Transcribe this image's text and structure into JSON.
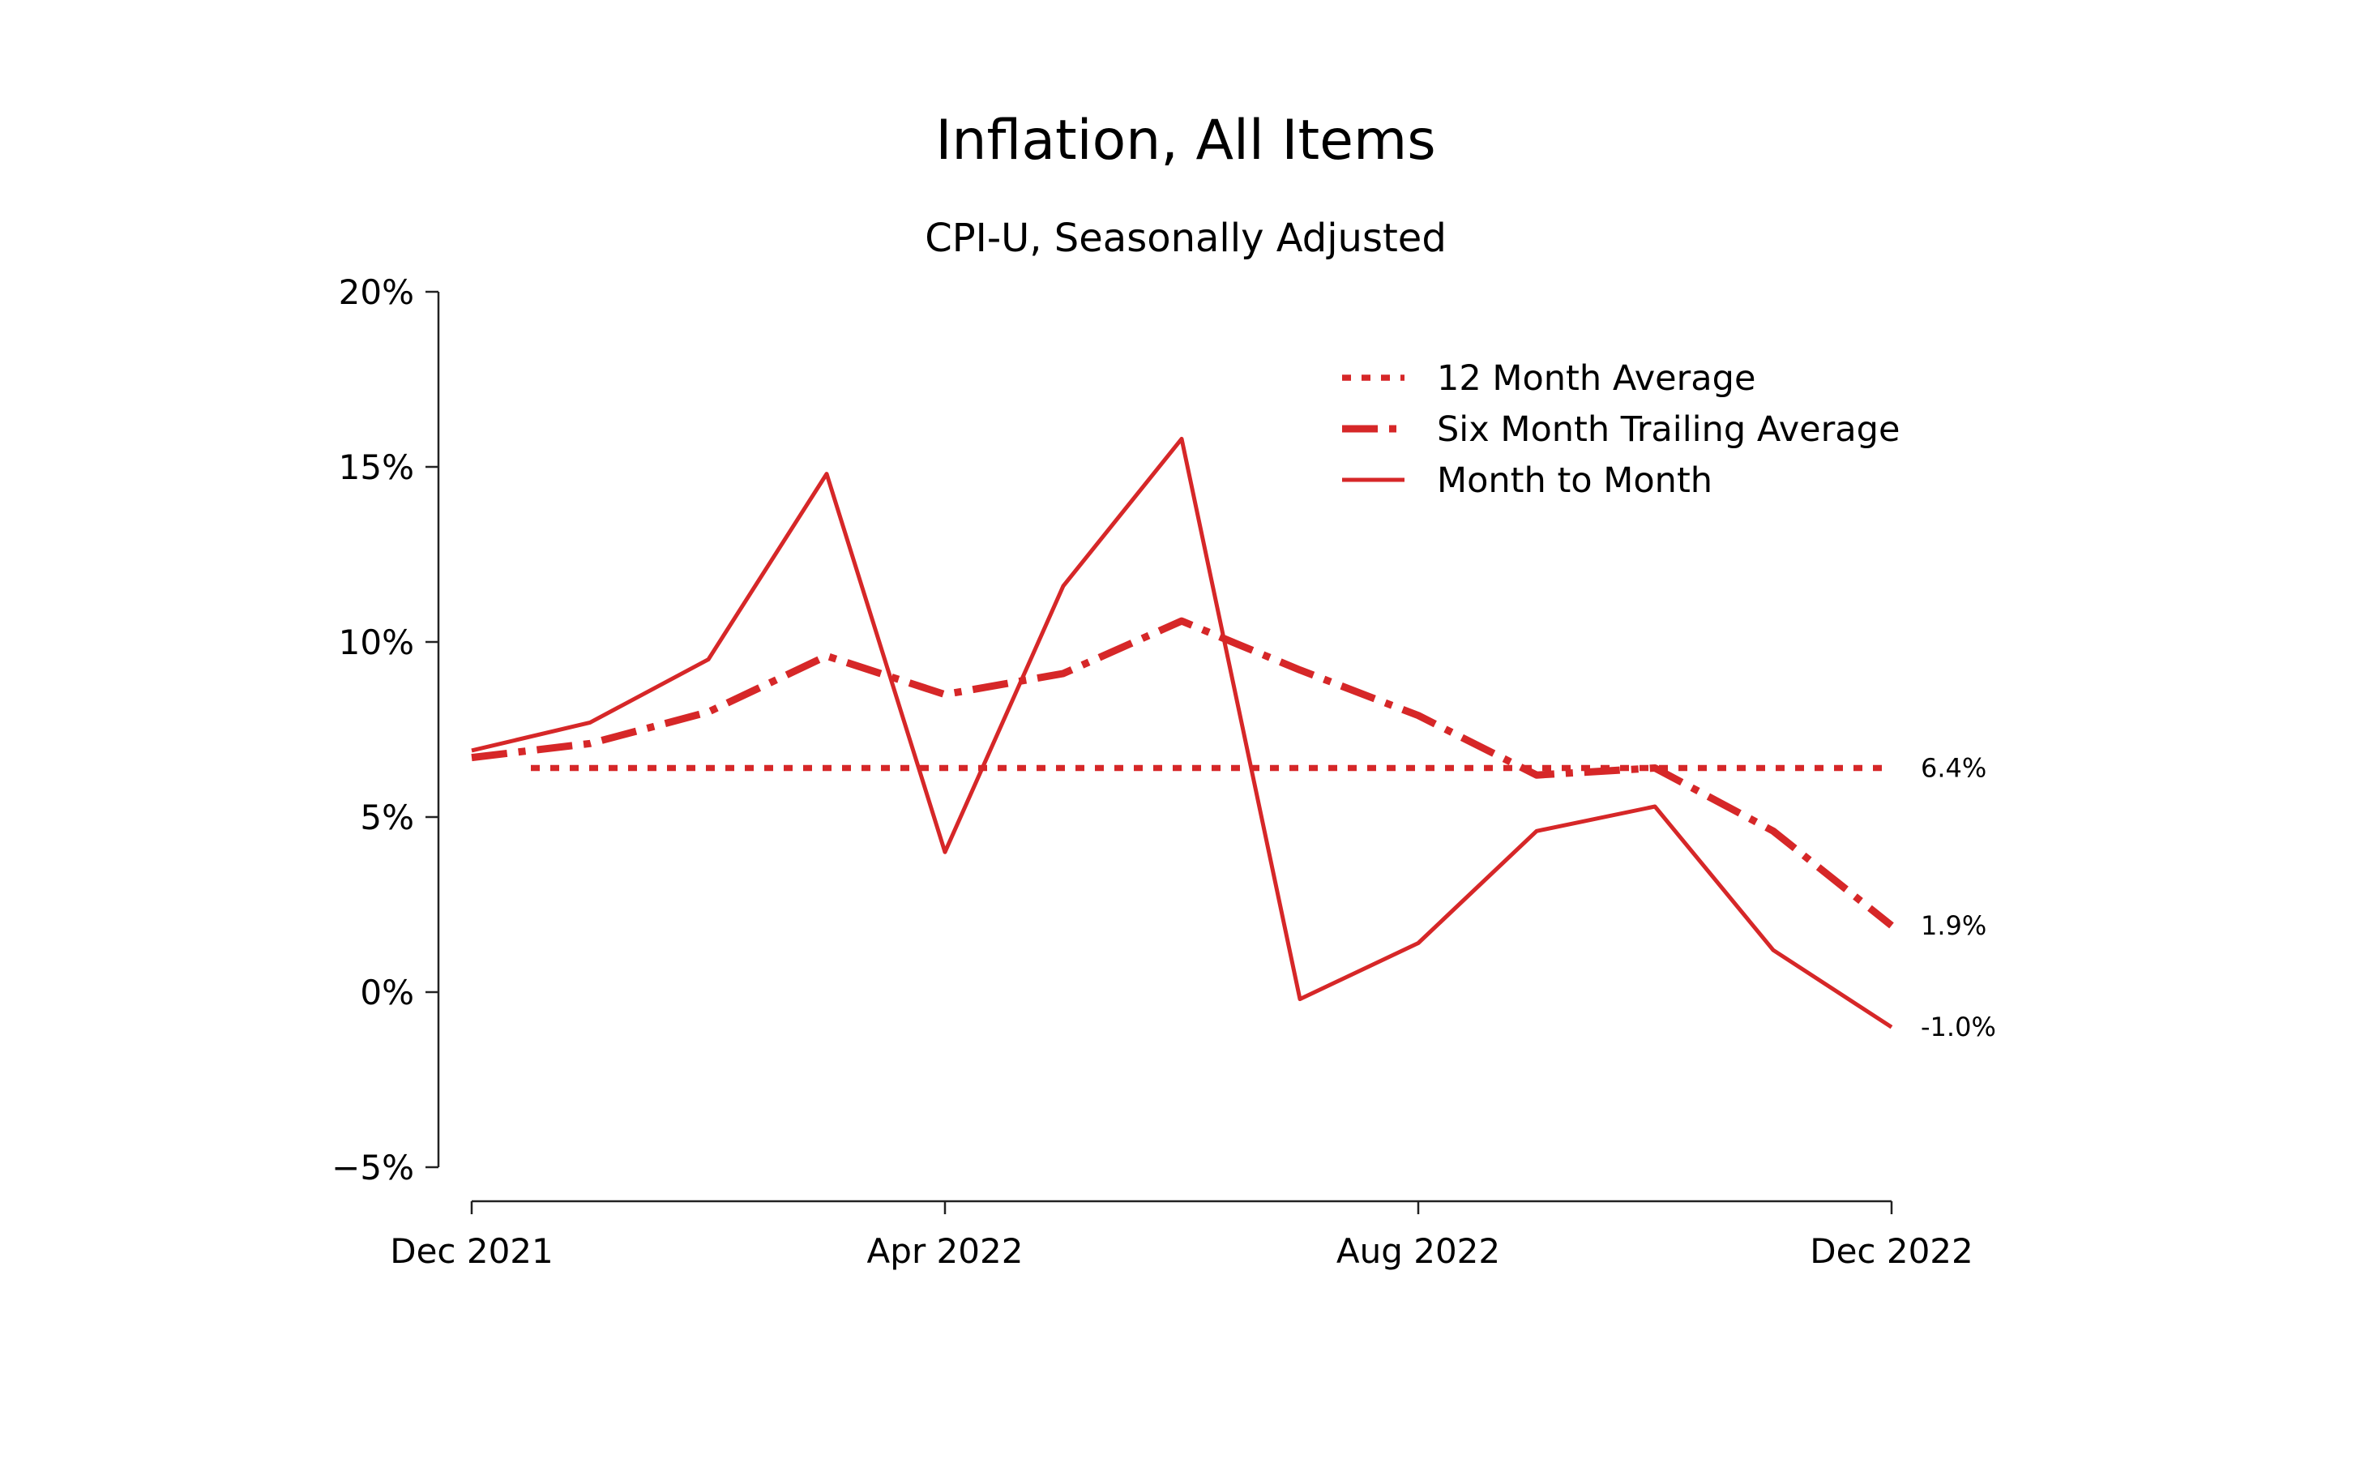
{
  "chart_data": {
    "type": "line",
    "title": "Inflation, All Items",
    "subtitle": "CPI-U, Seasonally Adjusted",
    "xlabel": "",
    "ylabel": "",
    "x": [
      "Dec 2021",
      "Jan 2022",
      "Feb 2022",
      "Mar 2022",
      "Apr 2022",
      "May 2022",
      "Jun 2022",
      "Jul 2022",
      "Aug 2022",
      "Sep 2022",
      "Oct 2022",
      "Nov 2022",
      "Dec 2022"
    ],
    "x_ticks": [
      {
        "index": 0,
        "label": "Dec 2021"
      },
      {
        "index": 4,
        "label": "Apr 2022"
      },
      {
        "index": 8,
        "label": "Aug 2022"
      },
      {
        "index": 12,
        "label": "Dec 2022"
      }
    ],
    "ylim": [
      -5,
      20
    ],
    "y_ticks": [
      {
        "value": 20,
        "label": "20%"
      },
      {
        "value": 15,
        "label": "15%"
      },
      {
        "value": 10,
        "label": "10%"
      },
      {
        "value": 5,
        "label": "5%"
      },
      {
        "value": 0,
        "label": "0%"
      },
      {
        "value": -5,
        "label": "−5%"
      }
    ],
    "grid": false,
    "legend_position": "top-right",
    "color": "#d62728",
    "series": [
      {
        "name": "12 Month Average",
        "style": "dotted",
        "x_start_index": 0.5,
        "x_end_index": 12,
        "values": [
          6.4,
          6.4
        ],
        "end_label": "6.4%"
      },
      {
        "name": "Six Month Trailing Average",
        "style": "dashdot",
        "values": [
          6.7,
          7.1,
          8.0,
          9.6,
          8.5,
          9.1,
          10.6,
          9.2,
          7.9,
          6.2,
          6.4,
          4.6,
          1.9
        ],
        "end_label": "1.9%"
      },
      {
        "name": "Month to Month",
        "style": "solid",
        "values": [
          6.9,
          7.7,
          9.5,
          14.8,
          4.0,
          11.6,
          15.8,
          -0.2,
          1.4,
          4.6,
          5.3,
          1.2,
          -1.0
        ],
        "end_label": "-1.0%"
      }
    ]
  }
}
